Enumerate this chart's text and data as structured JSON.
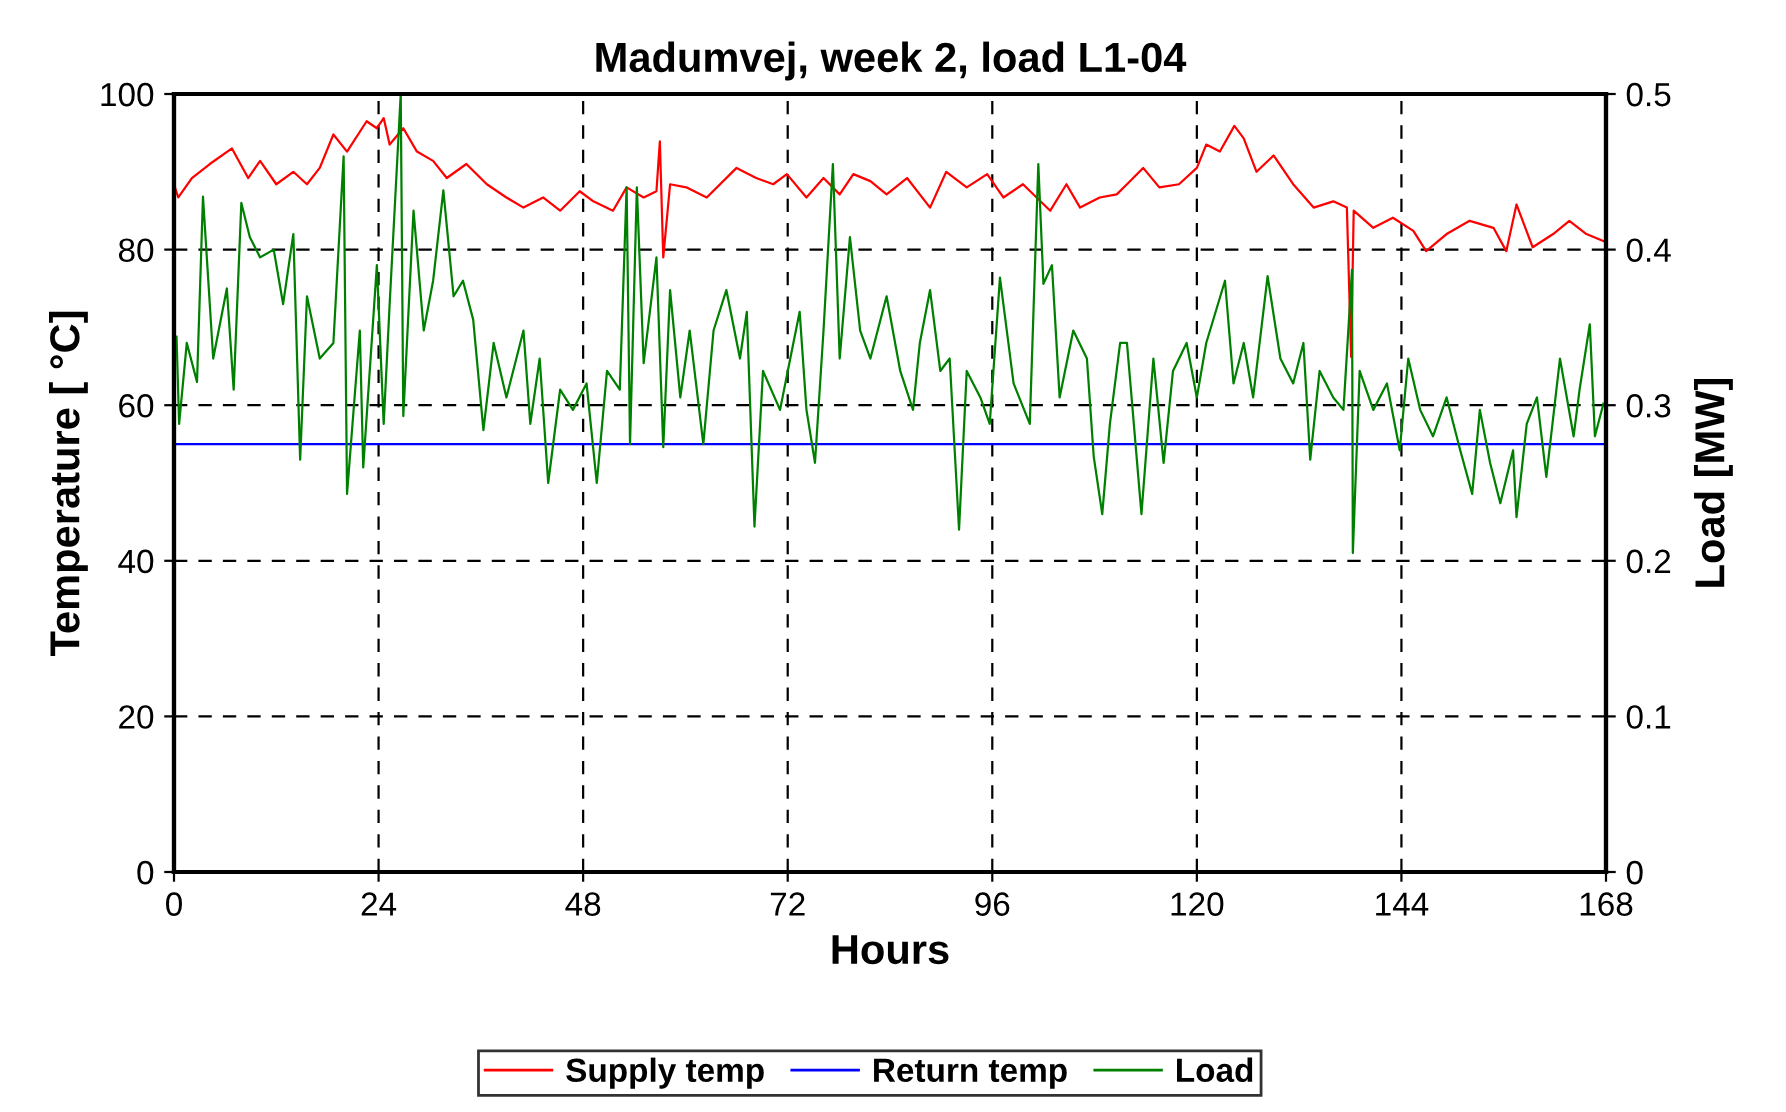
{
  "chart_data": {
    "type": "line",
    "title": "Madumvej, week 2, load L1-04",
    "xlabel": "Hours",
    "ylabel": "Temperature [ °C]",
    "y2label": "Load [MW]",
    "xlim": [
      0,
      168
    ],
    "xticks": [
      0,
      24,
      48,
      72,
      96,
      120,
      144,
      168
    ],
    "ylim": [
      0,
      100
    ],
    "yticks": [
      0,
      20,
      40,
      60,
      80,
      100
    ],
    "y2lim": [
      0,
      0.5
    ],
    "y2ticks": [
      0,
      0.1,
      0.2,
      0.3,
      0.4,
      0.5
    ],
    "grid": true,
    "legend": "bottom",
    "line_style": "solid",
    "series": [
      {
        "name": "Supply temp",
        "color": "#ff0000",
        "x": [
          0,
          0.5,
          2.1,
          4.2,
          6.8,
          8.7,
          10.1,
          12.0,
          14.0,
          15.6,
          17.1,
          18.7,
          20.3,
          22.6,
          23.8,
          24.6,
          25.3,
          26.9,
          28.5,
          30.4,
          32.0,
          34.3,
          36.7,
          39.0,
          41.0,
          43.3,
          45.3,
          47.6,
          49.2,
          51.5,
          53.1,
          55.1,
          56.6,
          57.0,
          57.4,
          58.2,
          60.1,
          62.5,
          66.0,
          68.3,
          70.3,
          71.9,
          74.2,
          76.2,
          78.1,
          79.7,
          81.7,
          83.6,
          86.0,
          88.7,
          90.6,
          93.0,
          95.4,
          97.3,
          99.6,
          102.8,
          104.7,
          106.3,
          108.6,
          110.6,
          111.8,
          113.7,
          115.6,
          117.9,
          120.0,
          121.1,
          122.7,
          124.4,
          125.5,
          127.0,
          129.0,
          131.3,
          133.7,
          136.0,
          137.6,
          138.1,
          138.4,
          140.7,
          143.0,
          145.4,
          146.9,
          149.3,
          152.0,
          154.8,
          156.3,
          157.5,
          159.4,
          161.8,
          163.7,
          165.7,
          167.7
        ],
        "values": [
          88.4,
          86.7,
          89.2,
          91,
          93,
          89.2,
          91.4,
          88.4,
          90,
          88.4,
          90.5,
          94.8,
          92.6,
          96.5,
          95.6,
          96.9,
          93.5,
          95.6,
          92.6,
          91.4,
          89.2,
          91,
          88.4,
          86.7,
          85.4,
          86.7,
          85,
          87.5,
          86.2,
          85,
          88,
          86.7,
          87.5,
          93.9,
          79,
          88.4,
          88,
          86.7,
          90.5,
          89.2,
          88.4,
          89.7,
          86.7,
          89.2,
          87.1,
          89.7,
          88.8,
          87.1,
          89.2,
          85.4,
          90,
          88,
          89.7,
          86.7,
          88.4,
          85,
          88.4,
          85.4,
          86.7,
          87.1,
          88.4,
          90.5,
          88,
          88.4,
          90.5,
          93.5,
          92.6,
          95.9,
          94.3,
          90,
          92.1,
          88.4,
          85.4,
          86.2,
          85.4,
          66.2,
          85,
          82.8,
          84.1,
          82.4,
          79.8,
          82,
          83.7,
          82.8,
          79.8,
          85.8,
          80.3,
          82,
          83.7,
          82,
          81.1
        ]
      },
      {
        "name": "Return temp",
        "color": "#0000ff",
        "x": [
          0,
          8,
          16,
          24,
          32,
          40,
          48,
          56,
          64,
          72,
          80,
          88,
          96,
          104,
          112,
          120,
          128,
          136,
          144,
          152,
          160,
          168
        ],
        "values": [
          55,
          55,
          55,
          55,
          55,
          55,
          55,
          55,
          55,
          55,
          55,
          55,
          55,
          55,
          55,
          55,
          55,
          55,
          55,
          55,
          55,
          55
        ]
      },
      {
        "name": "Load",
        "color": "#008000",
        "axis": "y2",
        "x": [
          0.3,
          0.6,
          1.5,
          2.7,
          3.4,
          4.6,
          6.2,
          7.0,
          7.9,
          8.9,
          10.1,
          11.7,
          12.8,
          14.0,
          14.8,
          15.6,
          17.1,
          18.7,
          19.9,
          20.3,
          21.8,
          22.2,
          23.8,
          24.6,
          25.3,
          26.6,
          26.9,
          28.1,
          29.3,
          30.4,
          31.6,
          32.8,
          33.9,
          35.1,
          36.3,
          37.5,
          39.0,
          41.0,
          41.8,
          42.9,
          43.9,
          45.3,
          46.8,
          48.4,
          49.6,
          50.8,
          52.3,
          53.1,
          53.5,
          54.3,
          55.1,
          56.6,
          57.4,
          58.2,
          59.4,
          60.5,
          62.1,
          63.3,
          64.8,
          66.4,
          67.2,
          68.1,
          69.1,
          71.1,
          72.3,
          73.4,
          74.2,
          75.2,
          76.2,
          77.3,
          78.1,
          79.3,
          80.5,
          81.7,
          83.6,
          85.2,
          86.7,
          87.5,
          88.7,
          89.9,
          91.0,
          92.1,
          93.0,
          94.6,
          95.7,
          96.9,
          98.5,
          100.4,
          101.4,
          102.0,
          103.0,
          103.9,
          105.5,
          107.1,
          107.9,
          108.9,
          109.8,
          111.0,
          111.8,
          113.5,
          114.9,
          116.1,
          117.2,
          118.8,
          120.0,
          121.1,
          123.3,
          124.3,
          125.5,
          126.6,
          128.3,
          129.8,
          131.3,
          132.5,
          133.3,
          134.4,
          136.0,
          137.2,
          138.2,
          138.3,
          139.1,
          140.7,
          142.3,
          143.8,
          144.8,
          146.2,
          147.7,
          149.3,
          150.9,
          152.3,
          153.2,
          154.4,
          155.6,
          157.1,
          157.5,
          158.7,
          159.9,
          161.0,
          162.6,
          164.2,
          164.9,
          166.1,
          166.7,
          167.7
        ],
        "values": [
          0.344,
          0.288,
          0.34,
          0.315,
          0.434,
          0.33,
          0.375,
          0.31,
          0.43,
          0.408,
          0.395,
          0.4,
          0.365,
          0.41,
          0.265,
          0.37,
          0.33,
          0.34,
          0.46,
          0.243,
          0.348,
          0.26,
          0.39,
          0.288,
          0.365,
          0.5,
          0.293,
          0.425,
          0.348,
          0.38,
          0.438,
          0.37,
          0.38,
          0.355,
          0.284,
          0.34,
          0.305,
          0.348,
          0.288,
          0.33,
          0.25,
          0.31,
          0.297,
          0.314,
          0.25,
          0.322,
          0.31,
          0.44,
          0.275,
          0.44,
          0.327,
          0.395,
          0.273,
          0.374,
          0.305,
          0.348,
          0.275,
          0.348,
          0.374,
          0.33,
          0.36,
          0.222,
          0.322,
          0.297,
          0.33,
          0.36,
          0.297,
          0.263,
          0.348,
          0.455,
          0.33,
          0.408,
          0.348,
          0.33,
          0.37,
          0.322,
          0.297,
          0.34,
          0.374,
          0.322,
          0.33,
          0.22,
          0.322,
          0.305,
          0.288,
          0.382,
          0.314,
          0.288,
          0.455,
          0.378,
          0.39,
          0.305,
          0.348,
          0.33,
          0.267,
          0.23,
          0.288,
          0.34,
          0.34,
          0.23,
          0.33,
          0.263,
          0.322,
          0.34,
          0.305,
          0.34,
          0.38,
          0.314,
          0.34,
          0.305,
          0.383,
          0.33,
          0.314,
          0.34,
          0.265,
          0.322,
          0.305,
          0.297,
          0.387,
          0.205,
          0.322,
          0.297,
          0.314,
          0.271,
          0.33,
          0.297,
          0.28,
          0.305,
          0.271,
          0.243,
          0.297,
          0.263,
          0.237,
          0.271,
          0.228,
          0.288,
          0.305,
          0.254,
          0.33,
          0.28,
          0.31,
          0.352,
          0.28,
          0.301
        ]
      }
    ]
  }
}
